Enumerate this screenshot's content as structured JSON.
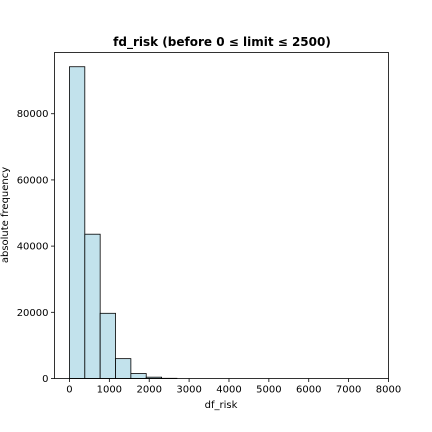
{
  "chart_data": {
    "type": "bar",
    "title": "fd_risk (before 0 ≤ limit ≤ 2500)",
    "xlabel": "df_risk",
    "ylabel": "absolute frequency",
    "xlim": [
      -375,
      8000
    ],
    "ylim": [
      0,
      98500
    ],
    "xticks": [
      0,
      1000,
      2000,
      3000,
      4000,
      5000,
      6000,
      7000,
      8000
    ],
    "yticks": [
      0,
      20000,
      40000,
      60000,
      80000
    ],
    "bar_color": "#c2e2ec",
    "edge_color": "#000000",
    "bins": [
      {
        "x0": 0,
        "x1": 385,
        "value": 94200
      },
      {
        "x0": 385,
        "x1": 770,
        "value": 43600
      },
      {
        "x0": 770,
        "x1": 1155,
        "value": 19700
      },
      {
        "x0": 1155,
        "x1": 1540,
        "value": 6000
      },
      {
        "x0": 1540,
        "x1": 1925,
        "value": 1500
      },
      {
        "x0": 1925,
        "x1": 2310,
        "value": 400
      },
      {
        "x0": 2310,
        "x1": 2695,
        "value": 60
      }
    ],
    "grid": false,
    "legend": "none"
  }
}
